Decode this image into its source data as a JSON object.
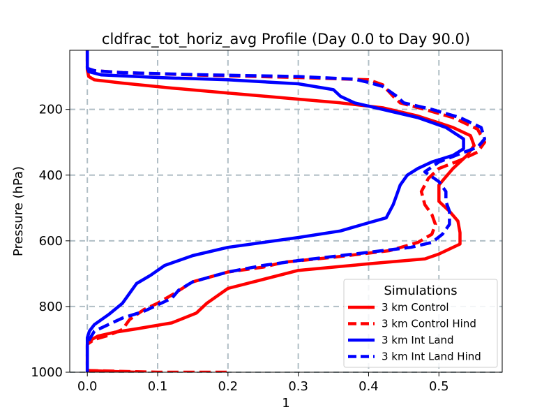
{
  "chart_data": {
    "type": "line",
    "title": "cldfrac_tot_horiz_avg Profile (Day 0.0 to Day 90.0)",
    "xlabel": "1",
    "ylabel": "Pressure (hPa)",
    "xlim": [
      -0.025,
      0.59
    ],
    "ylim": [
      1000,
      20
    ],
    "y_inverted": true,
    "grid": true,
    "legend_title": "Simulations",
    "legend_position": "lower-right",
    "x_ticks": [
      0.0,
      0.1,
      0.2,
      0.3,
      0.4,
      0.5
    ],
    "x_tick_labels": [
      "0.0",
      "0.1",
      "0.2",
      "0.3",
      "0.4",
      "0.5"
    ],
    "y_ticks": [
      200,
      400,
      600,
      800,
      1000
    ],
    "y_tick_labels": [
      "200",
      "400",
      "600",
      "800",
      "1000"
    ],
    "series": [
      {
        "name": "3 km Control",
        "color": "#ff0000",
        "dash": "solid",
        "points": [
          [
            0.0,
            20
          ],
          [
            0.0,
            80
          ],
          [
            0.002,
            100
          ],
          [
            0.01,
            110
          ],
          [
            0.05,
            120
          ],
          [
            0.12,
            135
          ],
          [
            0.2,
            150
          ],
          [
            0.28,
            165
          ],
          [
            0.36,
            180
          ],
          [
            0.42,
            195
          ],
          [
            0.47,
            220
          ],
          [
            0.52,
            255
          ],
          [
            0.545,
            280
          ],
          [
            0.55,
            310
          ],
          [
            0.54,
            340
          ],
          [
            0.52,
            380
          ],
          [
            0.5,
            430
          ],
          [
            0.5,
            480
          ],
          [
            0.515,
            510
          ],
          [
            0.527,
            540
          ],
          [
            0.53,
            575
          ],
          [
            0.53,
            610
          ],
          [
            0.5,
            640
          ],
          [
            0.48,
            655
          ],
          [
            0.4,
            670
          ],
          [
            0.3,
            690
          ],
          [
            0.2,
            745
          ],
          [
            0.17,
            790
          ],
          [
            0.155,
            820
          ],
          [
            0.12,
            850
          ],
          [
            0.07,
            868
          ],
          [
            0.04,
            878
          ],
          [
            0.015,
            890
          ],
          [
            0.005,
            902
          ],
          [
            0.0,
            915
          ],
          [
            0.0,
            995
          ],
          [
            0.04,
            998
          ],
          [
            0.07,
            1000
          ]
        ]
      },
      {
        "name": "3 km Control Hind",
        "color": "#ff0000",
        "dash": "dashed",
        "points": [
          [
            0.0,
            20
          ],
          [
            0.0,
            75
          ],
          [
            0.01,
            82
          ],
          [
            0.05,
            88
          ],
          [
            0.15,
            95
          ],
          [
            0.3,
            103
          ],
          [
            0.4,
            110
          ],
          [
            0.42,
            125
          ],
          [
            0.435,
            160
          ],
          [
            0.445,
            180
          ],
          [
            0.48,
            200
          ],
          [
            0.52,
            225
          ],
          [
            0.555,
            260
          ],
          [
            0.565,
            300
          ],
          [
            0.555,
            330
          ],
          [
            0.53,
            355
          ],
          [
            0.5,
            380
          ],
          [
            0.485,
            410
          ],
          [
            0.475,
            450
          ],
          [
            0.48,
            490
          ],
          [
            0.49,
            520
          ],
          [
            0.495,
            550
          ],
          [
            0.49,
            580
          ],
          [
            0.47,
            605
          ],
          [
            0.43,
            630
          ],
          [
            0.35,
            650
          ],
          [
            0.28,
            665
          ],
          [
            0.25,
            680
          ],
          [
            0.2,
            695
          ],
          [
            0.15,
            725
          ],
          [
            0.12,
            765
          ],
          [
            0.1,
            790
          ],
          [
            0.08,
            810
          ],
          [
            0.06,
            840
          ],
          [
            0.05,
            870
          ],
          [
            0.03,
            888
          ],
          [
            0.01,
            900
          ],
          [
            0.0,
            915
          ],
          [
            0.0,
            995
          ],
          [
            0.1,
            1000
          ],
          [
            0.2,
            1000
          ]
        ]
      },
      {
        "name": "3 km Int Land",
        "color": "#0000ff",
        "dash": "solid",
        "points": [
          [
            0.0,
            20
          ],
          [
            0.0,
            70
          ],
          [
            0.002,
            85
          ],
          [
            0.02,
            95
          ],
          [
            0.1,
            103
          ],
          [
            0.2,
            110
          ],
          [
            0.3,
            122
          ],
          [
            0.35,
            140
          ],
          [
            0.36,
            160
          ],
          [
            0.38,
            180
          ],
          [
            0.42,
            200
          ],
          [
            0.47,
            225
          ],
          [
            0.51,
            255
          ],
          [
            0.535,
            290
          ],
          [
            0.535,
            320
          ],
          [
            0.52,
            340
          ],
          [
            0.49,
            360
          ],
          [
            0.47,
            380
          ],
          [
            0.455,
            400
          ],
          [
            0.445,
            430
          ],
          [
            0.44,
            460
          ],
          [
            0.435,
            490
          ],
          [
            0.425,
            530
          ],
          [
            0.4,
            545
          ],
          [
            0.36,
            570
          ],
          [
            0.3,
            590
          ],
          [
            0.2,
            620
          ],
          [
            0.15,
            645
          ],
          [
            0.11,
            675
          ],
          [
            0.09,
            705
          ],
          [
            0.07,
            730
          ],
          [
            0.06,
            760
          ],
          [
            0.05,
            790
          ],
          [
            0.03,
            825
          ],
          [
            0.01,
            855
          ],
          [
            0.003,
            875
          ],
          [
            0.0,
            895
          ],
          [
            0.0,
            1000
          ]
        ]
      },
      {
        "name": "3 km Int Land Hind",
        "color": "#0000ff",
        "dash": "dashed",
        "points": [
          [
            0.0,
            20
          ],
          [
            0.0,
            75
          ],
          [
            0.01,
            82
          ],
          [
            0.05,
            88
          ],
          [
            0.15,
            94
          ],
          [
            0.3,
            100
          ],
          [
            0.38,
            108
          ],
          [
            0.4,
            118
          ],
          [
            0.42,
            130
          ],
          [
            0.44,
            160
          ],
          [
            0.45,
            180
          ],
          [
            0.49,
            200
          ],
          [
            0.53,
            225
          ],
          [
            0.56,
            255
          ],
          [
            0.565,
            290
          ],
          [
            0.555,
            315
          ],
          [
            0.53,
            335
          ],
          [
            0.5,
            360
          ],
          [
            0.48,
            390
          ],
          [
            0.5,
            420
          ],
          [
            0.51,
            450
          ],
          [
            0.51,
            480
          ],
          [
            0.515,
            510
          ],
          [
            0.515,
            550
          ],
          [
            0.505,
            580
          ],
          [
            0.49,
            605
          ],
          [
            0.46,
            620
          ],
          [
            0.38,
            640
          ],
          [
            0.3,
            660
          ],
          [
            0.25,
            675
          ],
          [
            0.2,
            695
          ],
          [
            0.15,
            725
          ],
          [
            0.13,
            750
          ],
          [
            0.12,
            775
          ],
          [
            0.1,
            795
          ],
          [
            0.08,
            815
          ],
          [
            0.05,
            835
          ],
          [
            0.03,
            855
          ],
          [
            0.01,
            875
          ],
          [
            0.003,
            900
          ],
          [
            0.0,
            915
          ],
          [
            0.0,
            1000
          ]
        ]
      }
    ]
  }
}
